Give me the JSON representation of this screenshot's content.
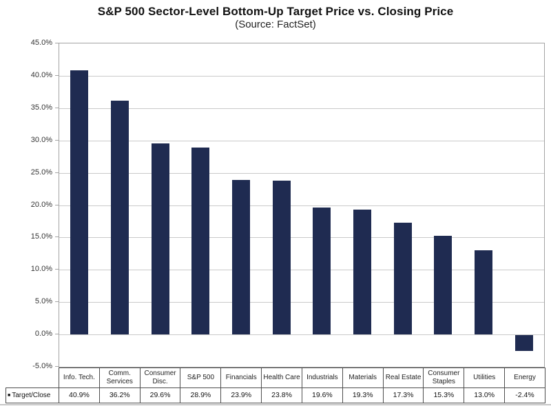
{
  "chart_data": {
    "type": "bar",
    "title": "S&P 500 Sector-Level Bottom-Up Target Price vs. Closing Price",
    "subtitle": "(Source: FactSet)",
    "categories": [
      "Info. Tech.",
      "Comm. Services",
      "Consumer Disc.",
      "S&P 500",
      "Financials",
      "Health Care",
      "Industrials",
      "Materials",
      "Real Estate",
      "Consumer Staples",
      "Utilities",
      "Energy"
    ],
    "series": [
      {
        "name": "Target/Close",
        "values": [
          40.9,
          36.2,
          29.6,
          28.9,
          23.9,
          23.8,
          19.6,
          19.3,
          17.3,
          15.3,
          13.0,
          -2.4
        ]
      }
    ],
    "value_labels": [
      "40.9%",
      "36.2%",
      "29.6%",
      "28.9%",
      "23.9%",
      "23.8%",
      "19.6%",
      "19.3%",
      "17.3%",
      "15.3%",
      "13.0%",
      "-2.4%"
    ],
    "xlabel": "",
    "ylabel": "",
    "ylim": [
      -5,
      45
    ],
    "ytick_step": 5,
    "ytick_labels": [
      "45.0%",
      "40.0%",
      "35.0%",
      "30.0%",
      "25.0%",
      "20.0%",
      "15.0%",
      "10.0%",
      "5.0%",
      "0.0%",
      "-5.0%"
    ],
    "grid": true,
    "legend_position": "bottom-table-left"
  },
  "legend": {
    "marker": "■",
    "label": "Target/Close"
  },
  "colors": {
    "bar": "#1f2b51",
    "gridline": "#c9c9c9",
    "plot_border": "#a3a3a3",
    "table_border": "#4d4d4d",
    "divider": "#c6c6c6",
    "title_text": "#111111",
    "axis_text": "#333333"
  }
}
